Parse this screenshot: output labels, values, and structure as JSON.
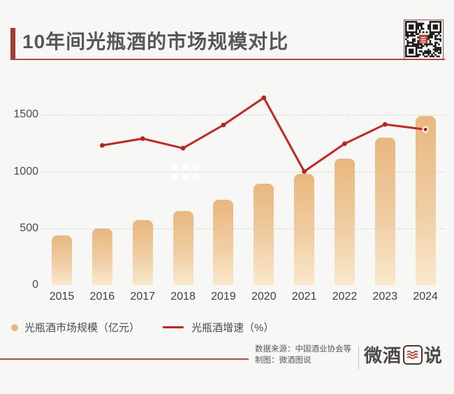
{
  "page": {
    "background": "#f7f7f6"
  },
  "header": {
    "title": "10年间光瓶酒的市场规模对比",
    "accent_color": "#a23b35",
    "underline_color": "#b8453e",
    "qr_center_color": "#c0392b"
  },
  "chart_data": {
    "type": "bar+line",
    "title": "10年间光瓶酒的市场规模对比",
    "categories": [
      "2015",
      "2016",
      "2017",
      "2018",
      "2019",
      "2020",
      "2021",
      "2022",
      "2023",
      "2024"
    ],
    "series": [
      {
        "name": "光瓶酒市场规模（亿元）",
        "type": "bar",
        "unit": "亿元",
        "values": [
          440,
          500,
          575,
          650,
          750,
          895,
          980,
          1115,
          1300,
          1490
        ],
        "bar_color_top": "#e8b77d",
        "bar_color_bottom": "#f9e9cc"
      },
      {
        "name": "光瓶酒增速（%）",
        "type": "line",
        "unit": "%",
        "axis_note": "secondary percent axis is unlabeled; values are plotted positions read on the left axis",
        "values": [
          null,
          1230,
          1290,
          1205,
          1410,
          1650,
          1000,
          1245,
          1415,
          1370
        ],
        "color": "#c9251d",
        "marker_color": "#bf1f17",
        "last_point_white_ring": true
      }
    ],
    "xlabel": "",
    "ylabel": "",
    "yticks": [
      0,
      500,
      1000,
      1500
    ],
    "ylim": [
      0,
      1700
    ],
    "grid": "horizontal dashed lines at 500 / 1000 / 1500",
    "gridline_color": "#d9d9d9",
    "legend_position": "bottom-left"
  },
  "legend": {
    "bar_label": "光瓶酒市场规模（亿元）",
    "line_label": "光瓶酒增速（%）"
  },
  "footer": {
    "source_line": "数据来源：中国酒业协会等",
    "credit_line": "制图：微酒图说",
    "logo_prefix": "微酒",
    "logo_boxed_char": "图",
    "logo_suffix": "说",
    "logo_text": "微酒图说"
  }
}
